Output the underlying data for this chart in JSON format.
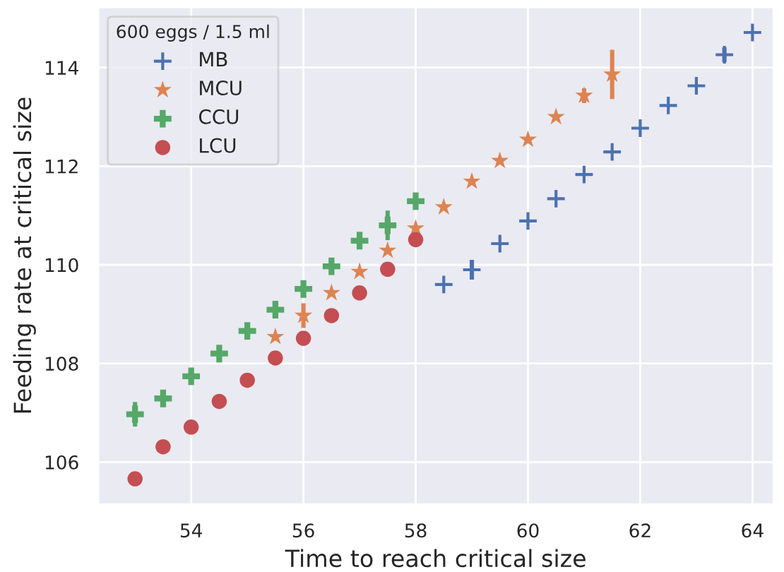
{
  "chart_data": {
    "type": "scatter",
    "xlabel": "Time to reach critical size",
    "ylabel": "Feeding rate at critical size",
    "legend_title": "600 eggs / 1.5 ml",
    "series": [
      {
        "name": "MB",
        "color": "#4c72b0",
        "marker": "plus",
        "x": [
          58.5,
          59,
          59.5,
          60,
          60.5,
          61,
          61.5,
          62,
          62.5,
          63,
          63.5,
          64
        ],
        "values": [
          109.6,
          109.9,
          110.43,
          110.89,
          111.34,
          111.83,
          112.29,
          112.77,
          113.23,
          113.63,
          114.26,
          114.71
        ],
        "errors": [
          null,
          0.2,
          null,
          null,
          null,
          null,
          null,
          null,
          null,
          null,
          0.15,
          null
        ]
      },
      {
        "name": "MCU",
        "color": "#dd8452",
        "marker": "star",
        "x": [
          55.5,
          56,
          56.5,
          57,
          57.5,
          58,
          58.5,
          59,
          59.5,
          60,
          60.5,
          61,
          61.5
        ],
        "values": [
          108.54,
          108.97,
          109.43,
          109.86,
          110.29,
          110.74,
          111.17,
          111.69,
          112.11,
          112.54,
          113.0,
          113.43,
          113.86
        ],
        "errors": [
          null,
          0.25,
          null,
          null,
          null,
          null,
          null,
          null,
          null,
          null,
          null,
          0.15,
          0.5
        ]
      },
      {
        "name": "CCU",
        "color": "#55a868",
        "marker": "cross",
        "x": [
          53,
          53.5,
          54,
          54.5,
          55,
          55.5,
          56,
          56.5,
          57,
          57.5,
          58
        ],
        "values": [
          106.97,
          107.29,
          107.74,
          108.2,
          108.66,
          109.09,
          109.51,
          109.97,
          110.49,
          110.8,
          111.29
        ],
        "errors": [
          0.25,
          null,
          null,
          null,
          null,
          null,
          null,
          null,
          null,
          0.3,
          null
        ]
      },
      {
        "name": "LCU",
        "color": "#c44e52",
        "marker": "circle",
        "x": [
          53,
          53.5,
          54,
          54.5,
          55,
          55.5,
          56,
          56.5,
          57,
          57.5,
          58
        ],
        "values": [
          105.66,
          106.31,
          106.71,
          107.23,
          107.66,
          108.11,
          108.51,
          108.97,
          109.43,
          109.91,
          110.51
        ],
        "errors": [
          null,
          0.1,
          null,
          null,
          null,
          null,
          null,
          null,
          null,
          null,
          null
        ]
      }
    ],
    "xlim": [
      52.34,
      64.38
    ],
    "ylim": [
      105.14,
      115.23
    ],
    "xticks": [
      54,
      56,
      58,
      60,
      62,
      64
    ],
    "yticks": [
      106,
      108,
      110,
      112,
      114
    ],
    "grid": true,
    "legend": "top left"
  }
}
